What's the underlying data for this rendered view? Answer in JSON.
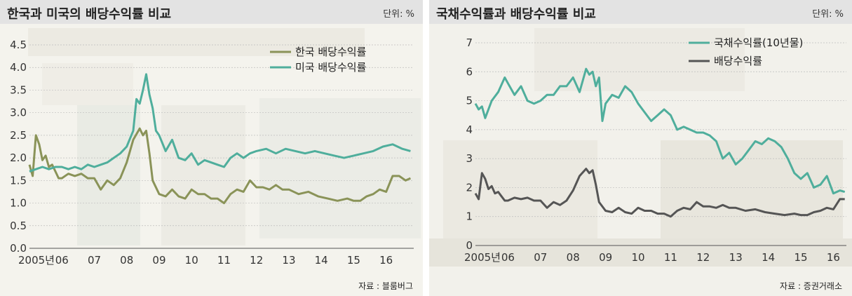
{
  "colors": {
    "korea": "#8a9358",
    "usa": "#4fae9c",
    "bond": "#4fae9c",
    "dividend": "#555555",
    "header": "#e3e3e3"
  },
  "chart_data": [
    {
      "type": "line",
      "title": "한국과 미국의 배당수익률 비교",
      "unit": "단위: %",
      "source": "자료 : 블룸버그",
      "ylim": [
        0,
        4.5
      ],
      "yticks": [
        "0.0",
        "0.5",
        "1.0",
        "1.5",
        "2.0",
        "2.5",
        "3.0",
        "3.5",
        "4.0",
        "4.5"
      ],
      "xlim": [
        2005,
        2016.85
      ],
      "xtick_labels": [
        "2005년",
        "06",
        "07",
        "08",
        "09",
        "10",
        "11",
        "12",
        "13",
        "14",
        "15",
        "16"
      ],
      "legend_position": "top-right",
      "series": [
        {
          "name": "한국 배당수익률",
          "color_key": "korea",
          "x": [
            2005,
            2005.1,
            2005.2,
            2005.3,
            2005.4,
            2005.5,
            2005.6,
            2005.7,
            2005.8,
            2005.9,
            2006,
            2006.2,
            2006.4,
            2006.6,
            2006.8,
            2007,
            2007.2,
            2007.4,
            2007.6,
            2007.8,
            2008,
            2008.2,
            2008.4,
            2008.5,
            2008.6,
            2008.7,
            2008.8,
            2009,
            2009.2,
            2009.4,
            2009.6,
            2009.8,
            2010,
            2010.2,
            2010.4,
            2010.6,
            2010.8,
            2011,
            2011.2,
            2011.4,
            2011.6,
            2011.8,
            2012,
            2012.2,
            2012.4,
            2012.6,
            2012.8,
            2013,
            2013.3,
            2013.6,
            2013.9,
            2014.2,
            2014.5,
            2014.8,
            2015,
            2015.2,
            2015.4,
            2015.6,
            2015.8,
            2016,
            2016.2,
            2016.4,
            2016.6,
            2016.75
          ],
          "y": [
            1.85,
            1.6,
            2.5,
            2.3,
            1.95,
            2.05,
            1.8,
            1.85,
            1.7,
            1.55,
            1.55,
            1.65,
            1.6,
            1.65,
            1.55,
            1.55,
            1.3,
            1.5,
            1.4,
            1.55,
            1.9,
            2.4,
            2.65,
            2.5,
            2.6,
            2.1,
            1.5,
            1.2,
            1.15,
            1.3,
            1.15,
            1.1,
            1.3,
            1.2,
            1.2,
            1.1,
            1.1,
            1.0,
            1.2,
            1.3,
            1.25,
            1.5,
            1.35,
            1.35,
            1.3,
            1.4,
            1.3,
            1.3,
            1.2,
            1.25,
            1.15,
            1.1,
            1.05,
            1.1,
            1.05,
            1.05,
            1.15,
            1.2,
            1.3,
            1.25,
            1.6,
            1.6,
            1.5,
            1.55
          ]
        },
        {
          "name": "미국 배당수익률",
          "color_key": "usa",
          "x": [
            2005,
            2005.2,
            2005.4,
            2005.6,
            2005.8,
            2006,
            2006.2,
            2006.4,
            2006.6,
            2006.8,
            2007,
            2007.2,
            2007.4,
            2007.6,
            2007.8,
            2008,
            2008.2,
            2008.3,
            2008.4,
            2008.5,
            2008.6,
            2008.7,
            2008.8,
            2008.9,
            2009,
            2009.2,
            2009.4,
            2009.6,
            2009.8,
            2010,
            2010.2,
            2010.4,
            2010.6,
            2010.8,
            2011,
            2011.2,
            2011.4,
            2011.6,
            2011.8,
            2012,
            2012.3,
            2012.6,
            2012.9,
            2013.2,
            2013.5,
            2013.8,
            2014.1,
            2014.4,
            2014.7,
            2015,
            2015.3,
            2015.6,
            2015.9,
            2016.2,
            2016.5,
            2016.75
          ],
          "y": [
            1.7,
            1.75,
            1.8,
            1.75,
            1.8,
            1.8,
            1.75,
            1.8,
            1.75,
            1.85,
            1.8,
            1.85,
            1.9,
            2.0,
            2.1,
            2.25,
            2.6,
            3.3,
            3.2,
            3.5,
            3.85,
            3.4,
            3.1,
            2.6,
            2.5,
            2.15,
            2.4,
            2.0,
            1.95,
            2.1,
            1.85,
            1.95,
            1.9,
            1.85,
            1.8,
            2.0,
            2.1,
            2.0,
            2.1,
            2.15,
            2.2,
            2.1,
            2.2,
            2.15,
            2.1,
            2.15,
            2.1,
            2.05,
            2.0,
            2.05,
            2.1,
            2.15,
            2.25,
            2.3,
            2.2,
            2.15
          ]
        }
      ]
    },
    {
      "type": "line",
      "title": "국채수익률과 배당수익률 비교",
      "unit": "단위: %",
      "source": "자료 : 증권거래소",
      "ylim": [
        0,
        7
      ],
      "yticks": [
        "0",
        "1",
        "2",
        "3",
        "4",
        "5",
        "6",
        "7"
      ],
      "xlim": [
        2005,
        2016.4
      ],
      "xtick_labels": [
        "2005년",
        "06",
        "07",
        "08",
        "09",
        "10",
        "11",
        "12",
        "13",
        "14",
        "15",
        "16"
      ],
      "legend_position": "top-right",
      "series": [
        {
          "name": "국채수익률(10년물)",
          "color_key": "bond",
          "x": [
            2005,
            2005.1,
            2005.2,
            2005.3,
            2005.5,
            2005.7,
            2005.9,
            2006,
            2006.2,
            2006.4,
            2006.6,
            2006.8,
            2007,
            2007.2,
            2007.4,
            2007.6,
            2007.8,
            2008,
            2008.2,
            2008.4,
            2008.5,
            2008.6,
            2008.7,
            2008.8,
            2008.9,
            2009,
            2009.2,
            2009.4,
            2009.6,
            2009.8,
            2010,
            2010.2,
            2010.4,
            2010.6,
            2010.8,
            2011,
            2011.2,
            2011.4,
            2011.6,
            2011.8,
            2012,
            2012.2,
            2012.4,
            2012.6,
            2012.8,
            2013,
            2013.2,
            2013.4,
            2013.6,
            2013.8,
            2014,
            2014.2,
            2014.4,
            2014.6,
            2014.8,
            2015,
            2015.2,
            2015.4,
            2015.6,
            2015.8,
            2016,
            2016.2,
            2016.35
          ],
          "y": [
            4.9,
            4.7,
            4.8,
            4.4,
            5.0,
            5.3,
            5.8,
            5.6,
            5.2,
            5.5,
            5.0,
            4.9,
            5.0,
            5.2,
            5.2,
            5.5,
            5.5,
            5.8,
            5.3,
            6.1,
            5.9,
            6.0,
            5.5,
            5.8,
            4.3,
            4.9,
            5.2,
            5.1,
            5.5,
            5.3,
            4.9,
            4.6,
            4.3,
            4.5,
            4.7,
            4.5,
            4.0,
            4.1,
            4.0,
            3.9,
            3.9,
            3.8,
            3.6,
            3.0,
            3.2,
            2.8,
            3.0,
            3.3,
            3.6,
            3.5,
            3.7,
            3.6,
            3.4,
            3.0,
            2.5,
            2.3,
            2.5,
            2.0,
            2.1,
            2.4,
            1.8,
            1.9,
            1.85
          ]
        },
        {
          "name": "배당수익률",
          "color_key": "dividend",
          "x": [
            2005,
            2005.1,
            2005.2,
            2005.3,
            2005.4,
            2005.5,
            2005.6,
            2005.7,
            2005.8,
            2005.9,
            2006,
            2006.2,
            2006.4,
            2006.6,
            2006.8,
            2007,
            2007.2,
            2007.4,
            2007.6,
            2007.8,
            2008,
            2008.2,
            2008.4,
            2008.5,
            2008.6,
            2008.7,
            2008.8,
            2009,
            2009.2,
            2009.4,
            2009.6,
            2009.8,
            2010,
            2010.2,
            2010.4,
            2010.6,
            2010.8,
            2011,
            2011.2,
            2011.4,
            2011.6,
            2011.8,
            2012,
            2012.2,
            2012.4,
            2012.6,
            2012.8,
            2013,
            2013.3,
            2013.6,
            2013.9,
            2014.2,
            2014.5,
            2014.8,
            2015,
            2015.2,
            2015.4,
            2015.6,
            2015.8,
            2016,
            2016.2,
            2016.35
          ],
          "y": [
            1.8,
            1.6,
            2.5,
            2.3,
            1.95,
            2.05,
            1.8,
            1.85,
            1.7,
            1.55,
            1.55,
            1.65,
            1.6,
            1.65,
            1.55,
            1.55,
            1.3,
            1.5,
            1.4,
            1.55,
            1.9,
            2.4,
            2.65,
            2.5,
            2.6,
            2.1,
            1.5,
            1.2,
            1.15,
            1.3,
            1.15,
            1.1,
            1.3,
            1.2,
            1.2,
            1.1,
            1.1,
            1.0,
            1.2,
            1.3,
            1.25,
            1.5,
            1.35,
            1.35,
            1.3,
            1.4,
            1.3,
            1.3,
            1.2,
            1.25,
            1.15,
            1.1,
            1.05,
            1.1,
            1.05,
            1.05,
            1.15,
            1.2,
            1.3,
            1.25,
            1.6,
            1.6
          ]
        }
      ]
    }
  ]
}
